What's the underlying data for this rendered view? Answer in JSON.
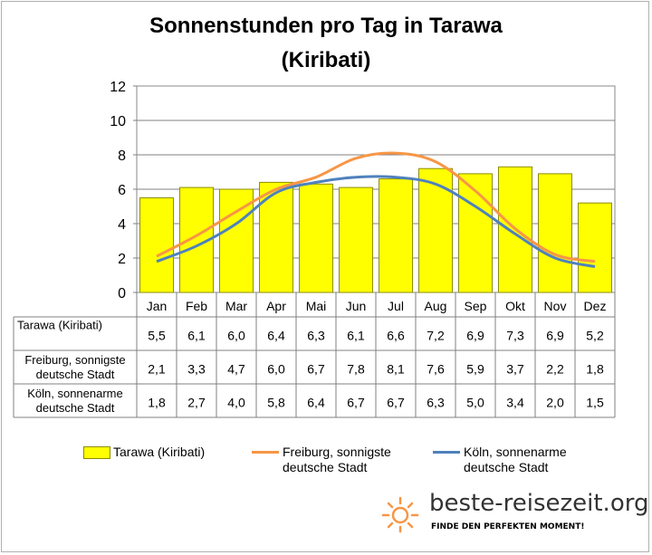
{
  "chart_data": {
    "type": "bar",
    "title_line1": "Sonnenstunden pro Tag in Tarawa",
    "title_line2": "(Kiribati)",
    "categories": [
      "Jan",
      "Feb",
      "Mar",
      "Apr",
      "Mai",
      "Jun",
      "Jul",
      "Aug",
      "Sep",
      "Okt",
      "Nov",
      "Dez"
    ],
    "ylim": [
      0,
      12
    ],
    "yticks": [
      "0",
      "2",
      "4",
      "6",
      "8",
      "10",
      "12"
    ],
    "grid": true,
    "series": [
      {
        "name": "Tarawa (Kiribati)",
        "label_lines": [
          "Tarawa  (Kiribati)"
        ],
        "type": "bar",
        "color": "#ffff00",
        "values": [
          5.5,
          6.1,
          6.0,
          6.4,
          6.3,
          6.1,
          6.6,
          7.2,
          6.9,
          7.3,
          6.9,
          5.2
        ],
        "labels": [
          "5,5",
          "6,1",
          "6,0",
          "6,4",
          "6,3",
          "6,1",
          "6,6",
          "7,2",
          "6,9",
          "7,3",
          "6,9",
          "5,2"
        ]
      },
      {
        "name": "Freiburg, sonnigste deutsche Stadt",
        "label_lines": [
          "Freiburg, sonnigste",
          "deutsche Stadt"
        ],
        "type": "line",
        "color": "#f79646",
        "values": [
          2.1,
          3.3,
          4.7,
          6.0,
          6.7,
          7.8,
          8.1,
          7.6,
          5.9,
          3.7,
          2.2,
          1.8
        ],
        "labels": [
          "2,1",
          "3,3",
          "4,7",
          "6,0",
          "6,7",
          "7,8",
          "8,1",
          "7,6",
          "5,9",
          "3,7",
          "2,2",
          "1,8"
        ]
      },
      {
        "name": "Köln, sonnenarme deutsche Stadt",
        "label_lines": [
          "Köln, sonnenarme",
          "deutsche Stadt"
        ],
        "type": "line",
        "color": "#4f81bd",
        "values": [
          1.8,
          2.7,
          4.0,
          5.8,
          6.4,
          6.7,
          6.7,
          6.3,
          5.0,
          3.4,
          2.0,
          1.5
        ],
        "labels": [
          "1,8",
          "2,7",
          "4,0",
          "5,8",
          "6,4",
          "6,7",
          "6,7",
          "6,3",
          "5,0",
          "3,4",
          "2,0",
          "1,5"
        ]
      }
    ],
    "legend": [
      "Tarawa (Kiribati)",
      "Freiburg, sonnigste",
      "deutsche Stadt",
      "Köln, sonnenarme",
      "deutsche Stadt"
    ],
    "legend_position": "bottom"
  },
  "brand": {
    "name": "beste-reisezeit.org",
    "slogan": "FINDE DEN PERFEKTEN MOMENT!"
  }
}
